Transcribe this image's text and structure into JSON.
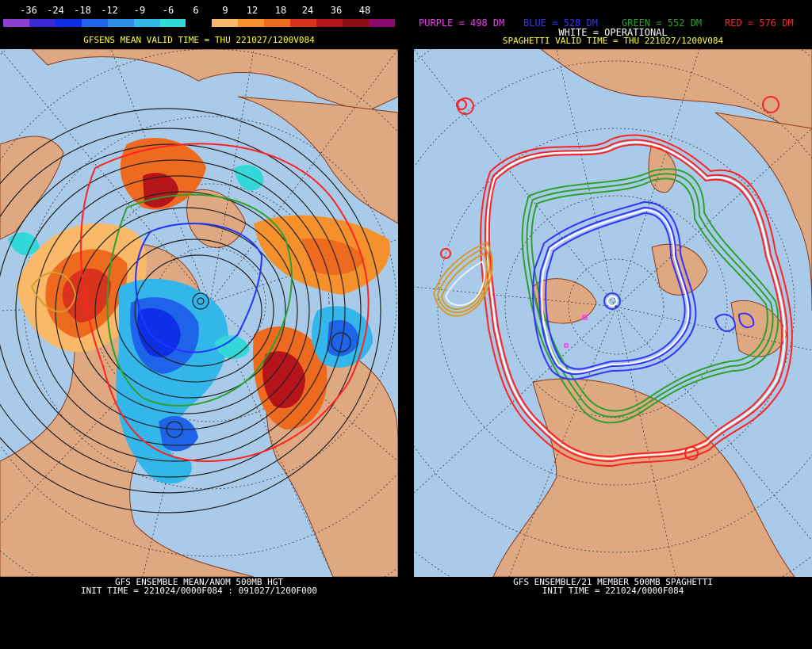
{
  "left_panel": {
    "colorbar": {
      "tick_labels": [
        "-36",
        "-24",
        "-18",
        "-12",
        "-9",
        "-6",
        "6",
        "9",
        "12",
        "18",
        "24",
        "36",
        "48"
      ],
      "colors": [
        "#8e3fd3",
        "#3b2bd6",
        "#0d2fe8",
        "#1e63e8",
        "#2d8fe8",
        "#33b7ea",
        "#33d8d8",
        "#000000",
        "#f9b968",
        "#f5912d",
        "#ee6a1f",
        "#d9321d",
        "#b5141b",
        "#8f0d14",
        "#8a0a6e"
      ]
    },
    "valid_time": "GFSENS MEAN VALID TIME = THU 221027/1200V084",
    "footer_line1": "GFS ENSEMBLE MEAN/ANOM 500MB HGT",
    "footer_line2": "INIT TIME = 221024/0000F084 : 091027/1200F000"
  },
  "right_panel": {
    "legend": {
      "purple": "PURPLE = 498 DM",
      "blue": "BLUE = 528 DM",
      "green": "GREEN = 552 DM",
      "red": "RED = 576 DM",
      "white": "WHITE = OPERATIONAL",
      "colors": {
        "purple": "#ff33ff",
        "blue": "#3333ff",
        "green": "#2ea02e",
        "red": "#ff2222",
        "white": "#ffffff"
      }
    },
    "valid_time": "SPAGHETTI VALID TIME = THU 221027/1200V084",
    "footer_line1": "GFS ENSEMBLE/21 MEMBER 500MB SPAGHETTI",
    "footer_line2": "INIT TIME = 221024/0000F084"
  },
  "map_colors": {
    "ocean": "#a9cbe9",
    "land": "#dea882",
    "borders": "#8a3b1a",
    "graticule": "#2c2c2c"
  }
}
